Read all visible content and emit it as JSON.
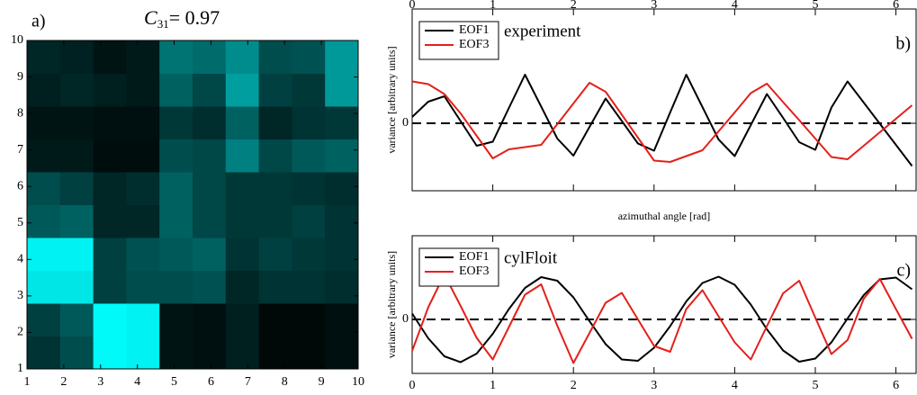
{
  "chart_data": [
    {
      "type": "heatmap",
      "label": "a)",
      "title_symbol": "C",
      "title_subscript": "31",
      "title_value": "= 0.97",
      "xlim": [
        1,
        10
      ],
      "ylim": [
        1,
        10
      ],
      "xticks": [
        1,
        2,
        3,
        4,
        5,
        6,
        7,
        8,
        9,
        10
      ],
      "yticks": [
        1,
        2,
        3,
        4,
        5,
        6,
        7,
        8,
        9,
        10
      ],
      "zlim": [
        0,
        1
      ],
      "colormap": [
        "#000000",
        "#00ffff"
      ],
      "z": [
        [
          0.2,
          0.3,
          0.98,
          0.95,
          0.08,
          0.06,
          0.12,
          0.03,
          0.03,
          0.06
        ],
        [
          0.25,
          0.35,
          0.98,
          0.95,
          0.08,
          0.06,
          0.12,
          0.03,
          0.03,
          0.06
        ],
        [
          0.9,
          0.9,
          0.25,
          0.3,
          0.3,
          0.32,
          0.15,
          0.2,
          0.2,
          0.18
        ],
        [
          0.95,
          0.95,
          0.25,
          0.32,
          0.35,
          0.38,
          0.2,
          0.25,
          0.22,
          0.2
        ],
        [
          0.35,
          0.38,
          0.15,
          0.15,
          0.38,
          0.28,
          0.22,
          0.22,
          0.25,
          0.2
        ],
        [
          0.3,
          0.25,
          0.15,
          0.18,
          0.38,
          0.28,
          0.22,
          0.22,
          0.2,
          0.18
        ],
        [
          0.1,
          0.1,
          0.05,
          0.05,
          0.3,
          0.28,
          0.5,
          0.28,
          0.35,
          0.38
        ],
        [
          0.08,
          0.08,
          0.06,
          0.06,
          0.22,
          0.18,
          0.38,
          0.15,
          0.2,
          0.22
        ],
        [
          0.12,
          0.15,
          0.12,
          0.1,
          0.38,
          0.28,
          0.62,
          0.25,
          0.22,
          0.6
        ],
        [
          0.15,
          0.13,
          0.08,
          0.1,
          0.45,
          0.42,
          0.55,
          0.3,
          0.32,
          0.6
        ]
      ]
    },
    {
      "type": "line",
      "label": "b)",
      "annotation": "experiment",
      "ylabel": "variance [arbitrary units]",
      "xlabel": "azimuthal angle [rad]",
      "xlim": [
        0,
        6.25
      ],
      "ylim": [
        -1.5,
        2.54
      ],
      "xticks": [
        0,
        1,
        2,
        3,
        4,
        5,
        6
      ],
      "yticks": [
        0
      ],
      "xtick_labels": "top",
      "zero_line": true,
      "legend": "upper left",
      "x": [
        0,
        0.2,
        0.4,
        0.6,
        0.8,
        1.0,
        1.2,
        1.4,
        1.6,
        1.8,
        2.0,
        2.2,
        2.4,
        2.6,
        2.8,
        3.0,
        3.2,
        3.4,
        3.6,
        3.8,
        4.0,
        4.2,
        4.4,
        4.6,
        4.8,
        5.0,
        5.2,
        5.4,
        5.6,
        5.8,
        6.0,
        6.2
      ],
      "series": [
        {
          "name": "EOF1",
          "color": "#000000",
          "values": [
            0.14,
            0.48,
            0.6,
            0.05,
            -0.5,
            -0.41,
            0.34,
            1.08,
            0.37,
            -0.34,
            -0.72,
            -0.08,
            0.55,
            0.05,
            -0.45,
            -0.61,
            0.24,
            1.08,
            0.36,
            -0.36,
            -0.73,
            -0.04,
            0.65,
            0.12,
            -0.42,
            -0.59,
            0.35,
            0.93,
            0.46,
            -0.01,
            -0.48,
            -0.95
          ]
        },
        {
          "name": "EOF3",
          "color": "#e3201b",
          "values": [
            0.93,
            0.87,
            0.65,
            0.22,
            -0.28,
            -0.78,
            -0.58,
            -0.53,
            -0.48,
            -0.02,
            0.44,
            0.9,
            0.7,
            0.19,
            -0.32,
            -0.83,
            -0.86,
            -0.73,
            -0.6,
            -0.18,
            0.24,
            0.67,
            0.88,
            0.47,
            0.07,
            -0.34,
            -0.75,
            -0.8,
            -0.5,
            -0.2,
            0.1,
            0.4
          ]
        }
      ]
    },
    {
      "type": "line",
      "label": "c)",
      "annotation": "cylFloit",
      "ylabel": "variance [arbitrary units]",
      "xlim": [
        0,
        6.25
      ],
      "ylim": [
        -1.2,
        1.86
      ],
      "xticks": [
        0,
        1,
        2,
        3,
        4,
        5,
        6
      ],
      "yticks": [
        0
      ],
      "xtick_labels": "bottom",
      "zero_line": true,
      "legend": "upper left",
      "x": [
        0,
        0.2,
        0.4,
        0.6,
        0.8,
        1.0,
        1.2,
        1.4,
        1.6,
        1.8,
        2.0,
        2.2,
        2.4,
        2.6,
        2.8,
        3.0,
        3.2,
        3.4,
        3.6,
        3.8,
        4.0,
        4.2,
        4.4,
        4.6,
        4.8,
        5.0,
        5.2,
        5.4,
        5.6,
        5.8,
        6.0,
        6.2
      ],
      "series": [
        {
          "name": "EOF1",
          "color": "#000000",
          "values": [
            0.13,
            -0.42,
            -0.82,
            -0.95,
            -0.76,
            -0.32,
            0.23,
            0.7,
            0.94,
            0.86,
            0.49,
            -0.04,
            -0.55,
            -0.89,
            -0.92,
            -0.63,
            -0.15,
            0.4,
            0.81,
            0.95,
            0.77,
            0.33,
            -0.22,
            -0.69,
            -0.94,
            -0.87,
            -0.51,
            0.02,
            0.54,
            0.89,
            0.93,
            0.67
          ]
        },
        {
          "name": "EOF3",
          "color": "#e3201b",
          "values": [
            -0.7,
            0.27,
            1.0,
            0.3,
            -0.41,
            -0.89,
            -0.17,
            0.55,
            0.78,
            -0.14,
            -0.97,
            -0.3,
            0.37,
            0.59,
            0.0,
            -0.59,
            -0.72,
            0.23,
            0.65,
            0.07,
            -0.51,
            -0.89,
            -0.15,
            0.58,
            0.86,
            0.04,
            -0.77,
            -0.46,
            0.46,
            0.9,
            0.23,
            -0.43
          ]
        }
      ]
    }
  ]
}
